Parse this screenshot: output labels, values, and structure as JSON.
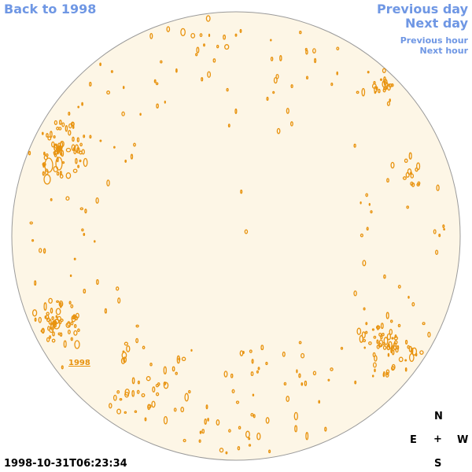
{
  "nav": {
    "back_label": "Back to 1998",
    "prev_day_label": "Previous day",
    "next_day_label": "Next day",
    "prev_hour_label": "Previous hour",
    "next_hour_label": "Next hour"
  },
  "compass": {
    "north": "N",
    "east": "E",
    "west": "W",
    "south": "S",
    "center": "+"
  },
  "timestamp": "1998-10-31T06:23:34",
  "region_label": "1998",
  "colors": {
    "link": "#6f97e4",
    "disk_fill": "#fdf6e6",
    "disk_border": "#9a9a9a",
    "contour": "#e8930f"
  }
}
